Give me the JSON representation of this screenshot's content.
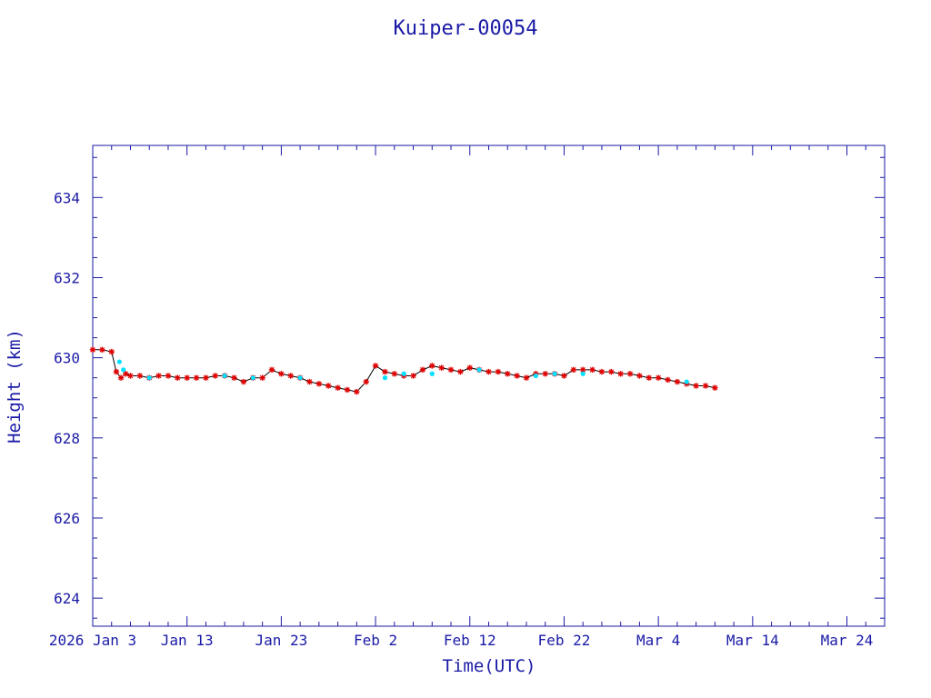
{
  "chart_data": {
    "type": "scatter",
    "title": "Kuiper-00054",
    "xlabel": "Time(UTC)",
    "ylabel": "Height (km)",
    "xlim": [
      "2026-01-03",
      "2026-03-28"
    ],
    "ylim": [
      623.3,
      635.3
    ],
    "x_tick_labels": [
      {
        "date": "2026-01-03",
        "label": "2026 Jan  3"
      },
      {
        "date": "2026-01-13",
        "label": "Jan 13"
      },
      {
        "date": "2026-01-23",
        "label": "Jan 23"
      },
      {
        "date": "2026-02-02",
        "label": "Feb  2"
      },
      {
        "date": "2026-02-12",
        "label": "Feb 12"
      },
      {
        "date": "2026-02-22",
        "label": "Feb 22"
      },
      {
        "date": "2026-03-04",
        "label": "Mar  4"
      },
      {
        "date": "2026-03-14",
        "label": "Mar 14"
      },
      {
        "date": "2026-03-24",
        "label": "Mar 24"
      }
    ],
    "y_ticks": [
      624,
      626,
      628,
      630,
      632,
      634
    ],
    "series": [
      {
        "color": "#e00000",
        "marker": "star",
        "x": [
          "2026-01-03",
          "2026-01-04",
          "2026-01-05",
          "2026-01-05T12",
          "2026-01-06",
          "2026-01-06T12",
          "2026-01-07",
          "2026-01-08",
          "2026-01-09",
          "2026-01-10",
          "2026-01-11",
          "2026-01-12",
          "2026-01-13",
          "2026-01-14",
          "2026-01-15",
          "2026-01-16",
          "2026-01-17",
          "2026-01-18",
          "2026-01-19",
          "2026-01-20",
          "2026-01-21",
          "2026-01-22",
          "2026-01-23",
          "2026-01-24",
          "2026-01-25",
          "2026-01-26",
          "2026-01-27",
          "2026-01-28",
          "2026-01-29",
          "2026-01-30",
          "2026-01-31",
          "2026-02-01",
          "2026-02-02",
          "2026-02-03",
          "2026-02-04",
          "2026-02-05",
          "2026-02-06",
          "2026-02-07",
          "2026-02-08",
          "2026-02-09",
          "2026-02-10",
          "2026-02-11",
          "2026-02-12",
          "2026-02-13",
          "2026-02-14",
          "2026-02-15",
          "2026-02-16",
          "2026-02-17",
          "2026-02-18",
          "2026-02-19",
          "2026-02-20",
          "2026-02-21",
          "2026-02-22",
          "2026-02-23",
          "2026-02-24",
          "2026-02-25",
          "2026-02-26",
          "2026-02-27",
          "2026-02-28",
          "2026-03-01",
          "2026-03-02",
          "2026-03-03",
          "2026-03-04",
          "2026-03-05",
          "2026-03-06",
          "2026-03-07",
          "2026-03-08",
          "2026-03-09",
          "2026-03-10"
        ],
        "y": [
          630.2,
          630.2,
          630.15,
          629.65,
          629.5,
          629.6,
          629.55,
          629.55,
          629.5,
          629.55,
          629.55,
          629.5,
          629.5,
          629.5,
          629.5,
          629.55,
          629.55,
          629.5,
          629.4,
          629.5,
          629.5,
          629.7,
          629.6,
          629.55,
          629.5,
          629.4,
          629.35,
          629.3,
          629.25,
          629.2,
          629.15,
          629.4,
          629.8,
          629.65,
          629.6,
          629.55,
          629.55,
          629.7,
          629.8,
          629.75,
          629.7,
          629.65,
          629.75,
          629.7,
          629.65,
          629.65,
          629.6,
          629.55,
          629.5,
          629.6,
          629.6,
          629.6,
          629.55,
          629.7,
          629.7,
          629.7,
          629.65,
          629.65,
          629.6,
          629.6,
          629.55,
          629.5,
          629.5,
          629.45,
          629.4,
          629.35,
          629.3,
          629.3,
          629.25
        ]
      },
      {
        "color": "#00e0ff",
        "marker": "dot",
        "x": [
          "2026-01-05T20",
          "2026-01-06T06",
          "2026-01-09",
          "2026-01-17",
          "2026-01-20",
          "2026-01-25",
          "2026-02-03",
          "2026-02-05",
          "2026-02-08",
          "2026-02-13",
          "2026-02-19",
          "2026-02-21",
          "2026-02-24",
          "2026-03-07"
        ],
        "y": [
          629.9,
          629.7,
          629.5,
          629.55,
          629.5,
          629.5,
          629.5,
          629.6,
          629.6,
          629.7,
          629.55,
          629.6,
          629.6,
          629.4
        ]
      }
    ],
    "grid": false,
    "legend": "none"
  },
  "colors": {
    "axis": "#1a1aa6",
    "text": "#1a1aa6",
    "line": "#000000"
  }
}
